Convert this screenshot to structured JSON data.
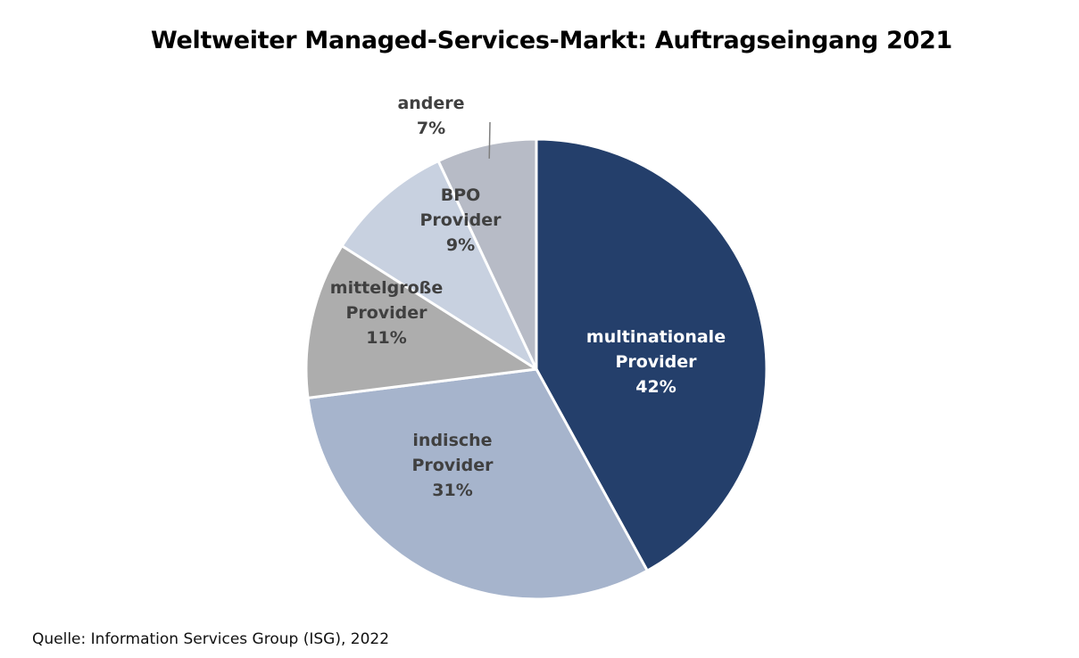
{
  "chart_data": {
    "type": "pie",
    "title": "Weltweiter Managed-Services-Markt: Auftragseingang 2021",
    "start_angle_deg": 0,
    "direction": "clockwise",
    "slices": [
      {
        "label_lines": [
          "multinationale",
          "Provider"
        ],
        "value": 42,
        "value_label": "42%",
        "color": "#243F6B",
        "label_color": "#FFFFFF"
      },
      {
        "label_lines": [
          "indische",
          "Provider"
        ],
        "value": 31,
        "value_label": "31%",
        "color": "#A6B4CC",
        "label_color": "#404040"
      },
      {
        "label_lines": [
          "mittelgroße",
          "Provider"
        ],
        "value": 11,
        "value_label": "11%",
        "color": "#ADADAD",
        "label_color": "#404040"
      },
      {
        "label_lines": [
          "BPO",
          "Provider"
        ],
        "value": 9,
        "value_label": "9%",
        "color": "#C8D1E0",
        "label_color": "#404040"
      },
      {
        "label_lines": [
          "andere"
        ],
        "value": 7,
        "value_label": "7%",
        "color": "#B7BBC6",
        "label_color": "#404040",
        "outside_label": true
      }
    ]
  },
  "source": "Quelle: Information Services Group (ISG), 2022"
}
